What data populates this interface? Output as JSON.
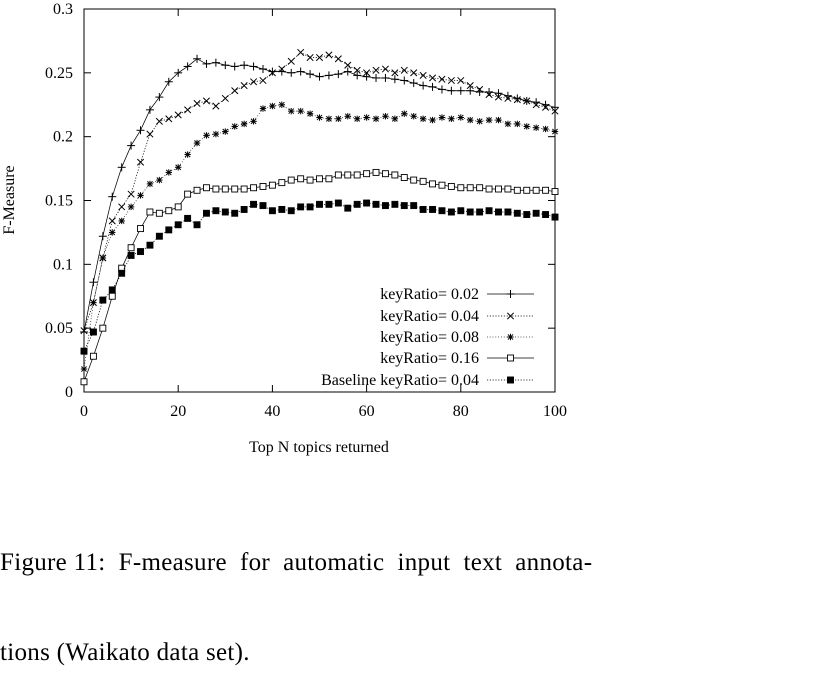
{
  "chart_data": {
    "type": "line",
    "title": "",
    "xlabel": "Top N topics returned",
    "ylabel": "F-Measure",
    "xlim": [
      0,
      100
    ],
    "ylim": [
      0,
      0.3
    ],
    "xticks": [
      "0",
      "20",
      "40",
      "60",
      "80",
      "100"
    ],
    "yticks": [
      "0",
      "0.05",
      "0.1",
      "0.15",
      "0.2",
      "0.25",
      "0.3"
    ],
    "grid": false,
    "legend_position": "bottom-right",
    "x": [
      0,
      2,
      4,
      6,
      8,
      10,
      12,
      14,
      16,
      18,
      20,
      22,
      24,
      26,
      28,
      30,
      32,
      34,
      36,
      38,
      40,
      42,
      44,
      46,
      48,
      50,
      52,
      54,
      56,
      58,
      60,
      62,
      64,
      66,
      68,
      70,
      72,
      74,
      76,
      78,
      80,
      82,
      84,
      86,
      88,
      90,
      92,
      94,
      96,
      98,
      100
    ],
    "series": [
      {
        "name": "keyRatio= 0.02",
        "marker": "plus",
        "values": [
          0.047,
          0.086,
          0.122,
          0.153,
          0.176,
          0.193,
          0.205,
          0.221,
          0.231,
          0.243,
          0.25,
          0.255,
          0.261,
          0.257,
          0.258,
          0.256,
          0.255,
          0.256,
          0.255,
          0.253,
          0.251,
          0.251,
          0.25,
          0.251,
          0.249,
          0.247,
          0.248,
          0.249,
          0.251,
          0.248,
          0.247,
          0.246,
          0.246,
          0.245,
          0.244,
          0.242,
          0.24,
          0.239,
          0.237,
          0.236,
          0.236,
          0.236,
          0.235,
          0.235,
          0.234,
          0.232,
          0.23,
          0.228,
          0.227,
          0.225,
          0.223
        ]
      },
      {
        "name": "keyRatio= 0.04",
        "marker": "cross",
        "values": [
          0.048,
          0.07,
          0.105,
          0.134,
          0.145,
          0.155,
          0.18,
          0.202,
          0.212,
          0.214,
          0.217,
          0.221,
          0.226,
          0.228,
          0.224,
          0.23,
          0.236,
          0.24,
          0.243,
          0.244,
          0.25,
          0.253,
          0.259,
          0.266,
          0.262,
          0.262,
          0.264,
          0.261,
          0.256,
          0.252,
          0.25,
          0.252,
          0.253,
          0.25,
          0.252,
          0.25,
          0.248,
          0.246,
          0.245,
          0.244,
          0.244,
          0.24,
          0.237,
          0.233,
          0.231,
          0.23,
          0.229,
          0.228,
          0.225,
          0.223,
          0.22
        ]
      },
      {
        "name": "keyRatio= 0.08",
        "marker": "star",
        "values": [
          0.018,
          0.07,
          0.105,
          0.125,
          0.134,
          0.145,
          0.154,
          0.163,
          0.166,
          0.172,
          0.176,
          0.186,
          0.195,
          0.201,
          0.202,
          0.204,
          0.208,
          0.21,
          0.212,
          0.222,
          0.224,
          0.225,
          0.22,
          0.22,
          0.218,
          0.215,
          0.214,
          0.214,
          0.216,
          0.214,
          0.215,
          0.214,
          0.216,
          0.214,
          0.218,
          0.216,
          0.214,
          0.213,
          0.215,
          0.214,
          0.215,
          0.213,
          0.212,
          0.213,
          0.213,
          0.21,
          0.21,
          0.208,
          0.207,
          0.206,
          0.204
        ]
      },
      {
        "name": "keyRatio= 0.16",
        "marker": "open-square",
        "values": [
          0.008,
          0.028,
          0.05,
          0.075,
          0.097,
          0.113,
          0.128,
          0.141,
          0.14,
          0.142,
          0.145,
          0.155,
          0.158,
          0.16,
          0.159,
          0.159,
          0.159,
          0.159,
          0.16,
          0.161,
          0.162,
          0.164,
          0.166,
          0.167,
          0.166,
          0.167,
          0.167,
          0.17,
          0.17,
          0.17,
          0.171,
          0.172,
          0.171,
          0.17,
          0.168,
          0.166,
          0.165,
          0.163,
          0.162,
          0.161,
          0.16,
          0.16,
          0.16,
          0.159,
          0.159,
          0.159,
          0.158,
          0.158,
          0.158,
          0.158,
          0.157
        ]
      },
      {
        "name": "Baseline keyRatio= 0.04",
        "marker": "filled-square",
        "values": [
          0.032,
          0.047,
          0.072,
          0.08,
          0.093,
          0.107,
          0.11,
          0.115,
          0.122,
          0.127,
          0.131,
          0.136,
          0.131,
          0.14,
          0.142,
          0.141,
          0.14,
          0.143,
          0.147,
          0.146,
          0.142,
          0.143,
          0.142,
          0.145,
          0.145,
          0.147,
          0.147,
          0.148,
          0.144,
          0.147,
          0.148,
          0.147,
          0.146,
          0.147,
          0.146,
          0.146,
          0.143,
          0.143,
          0.142,
          0.141,
          0.142,
          0.141,
          0.141,
          0.142,
          0.141,
          0.141,
          0.14,
          0.139,
          0.14,
          0.139,
          0.137
        ]
      }
    ]
  },
  "caption": {
    "line1": "Figure 11:  F-measure  for  automatic  input  text  annota-",
    "line2": "tions (Waikato data set)."
  }
}
